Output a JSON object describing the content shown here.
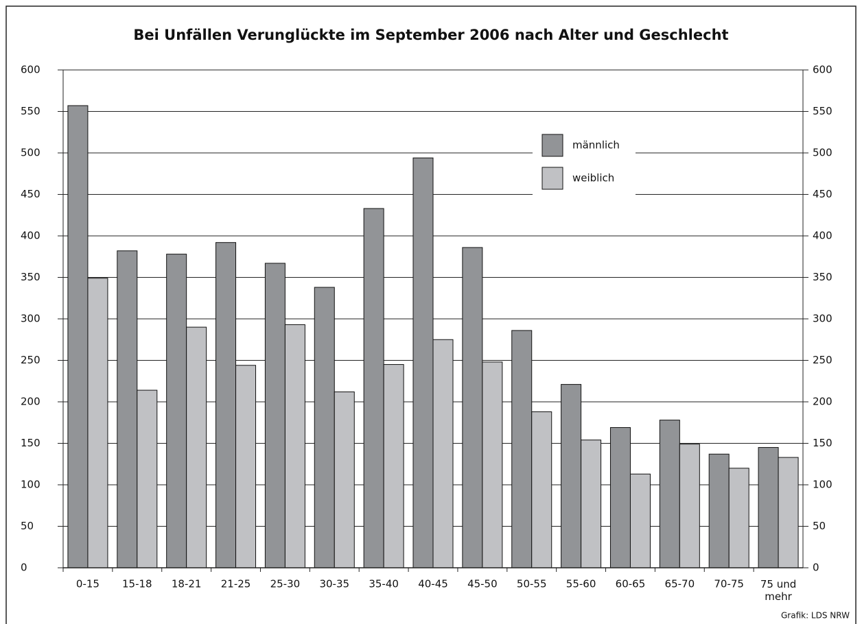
{
  "chart_data": {
    "type": "bar",
    "title": "Bei Unfällen Verunglückte im September 2006 nach Alter und Geschlecht",
    "categories": [
      "0-15",
      "15-18",
      "18-21",
      "21-25",
      "25-30",
      "30-35",
      "35-40",
      "40-45",
      "45-50",
      "50-55",
      "55-60",
      "60-65",
      "65-70",
      "70-75",
      "75 und mehr"
    ],
    "series": [
      {
        "name": "männlich",
        "color": "#929497",
        "values": [
          557,
          382,
          378,
          392,
          367,
          338,
          433,
          494,
          386,
          286,
          221,
          169,
          178,
          137,
          145
        ]
      },
      {
        "name": "weiblich",
        "color": "#c0c1c4",
        "values": [
          349,
          214,
          290,
          244,
          293,
          212,
          245,
          275,
          248,
          188,
          154,
          113,
          149,
          120,
          133
        ]
      }
    ],
    "ylim": [
      0,
      600
    ],
    "yticks": [
      0,
      50,
      100,
      150,
      200,
      250,
      300,
      350,
      400,
      450,
      500,
      550,
      600
    ],
    "y2lim": [
      0,
      600
    ],
    "y2ticks": [
      0,
      50,
      100,
      150,
      200,
      250,
      300,
      350,
      400,
      450,
      500,
      550,
      600
    ],
    "grid": true,
    "source": "Grafik: LDS NRW"
  }
}
